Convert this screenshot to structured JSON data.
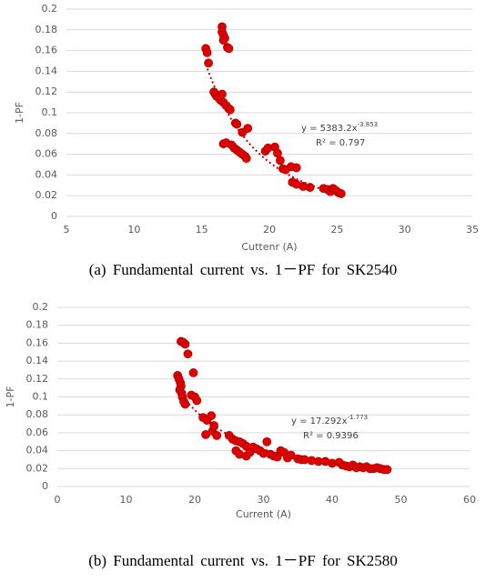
{
  "chart_data": [
    {
      "type": "scatter",
      "x_label": "Cuttenr (A)",
      "y_label": "1-PF",
      "caption": "(a) Fundamental current vs. 1－PF for SK2540",
      "color": "#e00000",
      "grid": true,
      "xlim": [
        5,
        35
      ],
      "xticks": [
        5,
        10,
        15,
        20,
        25,
        30,
        35
      ],
      "ylim": [
        0,
        0.2
      ],
      "yticks": [
        0,
        0.02,
        0.04,
        0.06,
        0.08,
        0.1,
        0.12,
        0.14,
        0.16,
        0.18,
        0.2
      ],
      "x": [
        15.3,
        15.4,
        15.5,
        16.5,
        16.5,
        16.6,
        16.7,
        16.6,
        16.9,
        17.0,
        15.9,
        16.0,
        16.1,
        16.2,
        16.4,
        16.5,
        16.6,
        16.8,
        17.0,
        17.1,
        17.5,
        17.6,
        18.0,
        18.4,
        16.6,
        16.8,
        17.2,
        17.4,
        17.6,
        17.8,
        18.0,
        18.2,
        18.3,
        19.7,
        19.9,
        20.4,
        20.6,
        20.8,
        21.0,
        21.2,
        21.6,
        22.0,
        21.7,
        22.0,
        22.5,
        23.0,
        24.0,
        24.3,
        24.5,
        24.7,
        24.9,
        25.1,
        25.3,
        24.8
      ],
      "values": [
        0.162,
        0.158,
        0.148,
        0.183,
        0.178,
        0.175,
        0.172,
        0.17,
        0.163,
        0.162,
        0.12,
        0.118,
        0.116,
        0.115,
        0.112,
        0.118,
        0.11,
        0.107,
        0.104,
        0.103,
        0.09,
        0.089,
        0.081,
        0.085,
        0.07,
        0.071,
        0.069,
        0.066,
        0.064,
        0.062,
        0.06,
        0.058,
        0.056,
        0.063,
        0.066,
        0.067,
        0.061,
        0.054,
        0.046,
        0.045,
        0.048,
        0.047,
        0.033,
        0.031,
        0.029,
        0.028,
        0.027,
        0.026,
        0.024,
        0.027,
        0.025,
        0.023,
        0.022,
        0.026
      ],
      "trendline": {
        "coefficient": 5383.2,
        "exponent": -3.853,
        "label": "y = 5383.2x",
        "label_exponent": "-3.853",
        "r_squared_label": "R² = 0.797"
      }
    },
    {
      "type": "scatter",
      "x_label": "Current (A)",
      "y_label": "1-PF",
      "caption": "(b) Fundamental current vs. 1－PF for SK2580",
      "color": "#e00000",
      "grid": true,
      "xlim": [
        0,
        60
      ],
      "xticks": [
        0,
        10,
        20,
        30,
        40,
        50,
        60
      ],
      "ylim": [
        0,
        0.2
      ],
      "yticks": [
        0,
        0.02,
        0.04,
        0.06,
        0.08,
        0.1,
        0.12,
        0.14,
        0.16,
        0.18,
        0.2
      ],
      "x": [
        18.0,
        18.3,
        18.6,
        19.0,
        17.5,
        17.7,
        17.9,
        18.0,
        17.8,
        18.1,
        18.2,
        18.4,
        18.6,
        19.5,
        19.8,
        20.0,
        20.3,
        21.2,
        21.8,
        22.4,
        21.6,
        22.6,
        23.2,
        22.8,
        25.0,
        25.5,
        26.0,
        26.5,
        27.0,
        27.5,
        26.0,
        26.5,
        27.5,
        28.0,
        28.5,
        29.0,
        29.5,
        30.0,
        30.5,
        31.0,
        31.5,
        32.0,
        32.5,
        33.0,
        33.5,
        34.0,
        35.0,
        35.5,
        36.0,
        37.0,
        38.0,
        39.0,
        40.0,
        41.0,
        41.5,
        42.0,
        42.5,
        43.0,
        43.5,
        44.0,
        44.5,
        45.0,
        45.5,
        46.0,
        46.5,
        47.0,
        47.5,
        48.0
      ],
      "values": [
        0.162,
        0.161,
        0.159,
        0.148,
        0.124,
        0.12,
        0.116,
        0.112,
        0.108,
        0.104,
        0.1,
        0.095,
        0.092,
        0.102,
        0.127,
        0.1,
        0.096,
        0.077,
        0.074,
        0.079,
        0.058,
        0.062,
        0.057,
        0.068,
        0.057,
        0.053,
        0.051,
        0.05,
        0.048,
        0.045,
        0.04,
        0.036,
        0.034,
        0.038,
        0.044,
        0.042,
        0.04,
        0.037,
        0.05,
        0.036,
        0.034,
        0.033,
        0.04,
        0.038,
        0.032,
        0.035,
        0.031,
        0.03,
        0.03,
        0.029,
        0.028,
        0.028,
        0.026,
        0.027,
        0.024,
        0.023,
        0.022,
        0.024,
        0.021,
        0.022,
        0.021,
        0.022,
        0.02,
        0.02,
        0.021,
        0.02,
        0.019,
        0.019
      ],
      "trendline": {
        "coefficient": 17.292,
        "exponent": -1.773,
        "label": "y = 17.292x",
        "label_exponent": "-1.773",
        "r_squared_label": "R² = 0.9396"
      }
    }
  ]
}
